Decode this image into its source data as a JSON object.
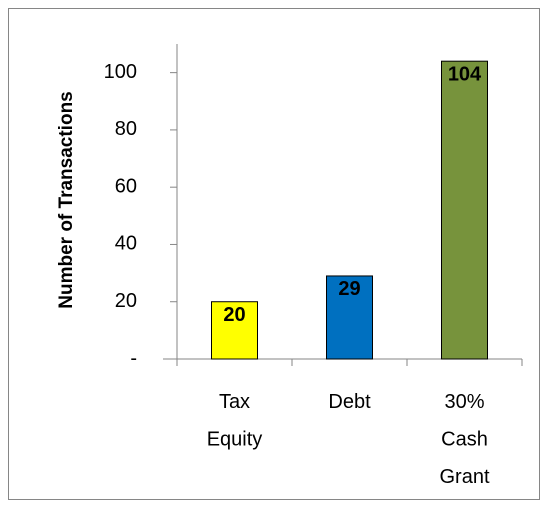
{
  "chart_data": {
    "type": "bar",
    "y_axis_label": "Number of Transactions",
    "categories": [
      "Tax Equity",
      "Debt",
      "30% Cash Grant"
    ],
    "values": [
      20,
      29,
      104
    ],
    "colors": [
      "#ffff00",
      "#0070c0",
      "#77933c"
    ],
    "ylim": [
      0,
      110
    ],
    "yticks": [
      {
        "value": 0,
        "label": "-"
      },
      20,
      40,
      60,
      80,
      100
    ],
    "grid": false
  }
}
